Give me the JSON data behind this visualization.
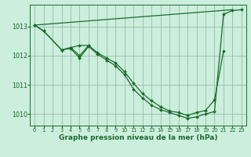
{
  "xlabel": "Graphe pression niveau de la mer (hPa)",
  "background_color": "#cceedd",
  "plot_bg_color": "#cceedd",
  "grid_color": "#99bbaa",
  "line_color": "#1a6b2a",
  "xlim": [
    -0.5,
    23.5
  ],
  "ylim": [
    1009.6,
    1013.75
  ],
  "yticks": [
    1010,
    1011,
    1012,
    1013
  ],
  "xticks": [
    0,
    1,
    2,
    3,
    4,
    5,
    6,
    7,
    8,
    9,
    10,
    11,
    12,
    13,
    14,
    15,
    16,
    17,
    18,
    19,
    20,
    21,
    22,
    23
  ],
  "series": [
    {
      "x": [
        0,
        22
      ],
      "y": [
        1013.05,
        1013.58
      ],
      "marker": false
    },
    {
      "x": [
        0,
        1,
        3,
        4,
        5,
        6,
        7,
        8,
        9,
        10,
        11,
        12,
        13,
        14,
        15,
        16,
        17,
        18,
        19,
        20,
        21,
        22,
        23
      ],
      "y": [
        1013.05,
        1012.85,
        1012.2,
        1012.25,
        1011.92,
        1012.32,
        1012.05,
        1011.85,
        1011.65,
        1011.35,
        1010.85,
        1010.55,
        1010.3,
        1010.15,
        1010.05,
        1009.95,
        1009.85,
        1009.9,
        1010.0,
        1010.08,
        1013.42,
        1013.55,
        1013.58
      ],
      "marker": true
    },
    {
      "x": [
        0,
        1,
        3,
        4,
        5,
        6,
        7,
        8,
        9,
        10,
        11,
        12,
        13,
        14,
        15,
        16,
        17,
        18,
        19,
        20,
        21
      ],
      "y": [
        1013.05,
        1012.85,
        1012.2,
        1012.28,
        1012.0,
        1012.35,
        1012.1,
        1011.92,
        1011.75,
        1011.45,
        1011.05,
        1010.7,
        1010.45,
        1010.25,
        1010.1,
        1010.05,
        1009.95,
        1010.05,
        1010.12,
        1010.48,
        1012.15
      ],
      "marker": true
    },
    {
      "x": [
        4,
        5,
        6
      ],
      "y": [
        1012.28,
        1012.35,
        1012.35
      ],
      "marker": true
    }
  ]
}
